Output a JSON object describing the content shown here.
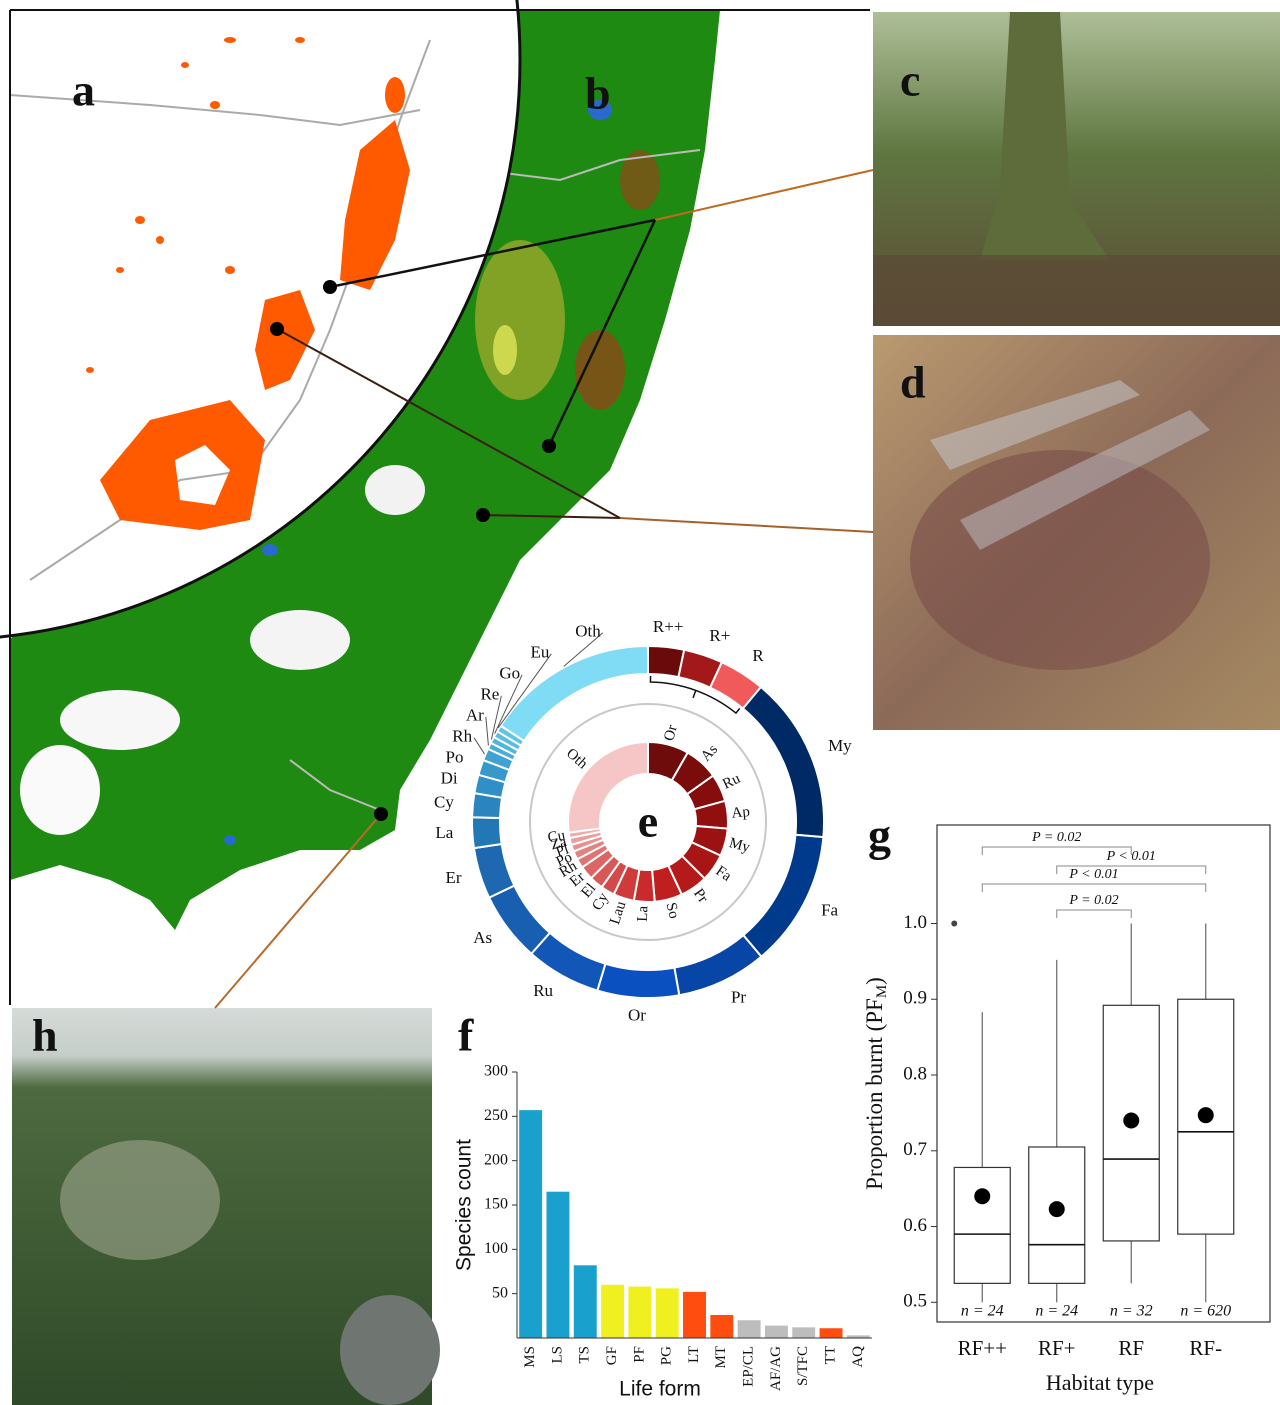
{
  "panel_labels": [
    "a",
    "b",
    "c",
    "d",
    "e",
    "f",
    "g",
    "h"
  ],
  "chart_data": [
    {
      "type": "donut",
      "outer": {
        "categories": [
          "R++",
          "R+",
          "R",
          "My",
          "Fa",
          "Pr",
          "Or",
          "Ru",
          "As",
          "Er",
          "La",
          "Cy",
          "Di",
          "Po",
          "Rh",
          "Ar",
          "Re",
          "Go",
          "Eu",
          "Oth"
        ],
        "values": [
          3.3,
          3.6,
          4.2,
          15.3,
          12.5,
          8.3,
          7.5,
          6.9,
          6.4,
          4.7,
          2.8,
          2.2,
          1.7,
          1.4,
          1.1,
          0.6,
          0.6,
          0.6,
          0.6,
          15.8
        ],
        "colors": [
          "#6b0a0a",
          "#a31818",
          "#f05a5a",
          "#002a66",
          "#003a8c",
          "#0745a6",
          "#0a50c0",
          "#1257b8",
          "#185fb2",
          "#1e68b2",
          "#2277b5",
          "#2a84bf",
          "#308fc7",
          "#3898cc",
          "#40a2d2",
          "#48acd8",
          "#50b5dc",
          "#58bde0",
          "#60c5e5",
          "#80dcf5"
        ]
      },
      "inner": {
        "categories": [
          "Or",
          "As",
          "Ru",
          "Ap",
          "My",
          "Fa",
          "Pr",
          "So",
          "La",
          "Lau",
          "Cy",
          "El",
          "Er",
          "Rh",
          "Po",
          "Pl",
          "Za",
          "Cu",
          "Oth"
        ],
        "values": [
          8.3,
          6.9,
          5.6,
          5.6,
          5.6,
          5.6,
          5.6,
          5.6,
          4.2,
          4.2,
          2.8,
          2.8,
          2.8,
          1.9,
          1.7,
          1.4,
          1.4,
          1.1,
          27.2
        ],
        "colors": [
          "#6e0b0b",
          "#7a0c0c",
          "#860d0d",
          "#910f0f",
          "#9c1212",
          "#a81515",
          "#b41a1a",
          "#c01f1f",
          "#c92a2a",
          "#cf3a3a",
          "#d44a4a",
          "#d85858",
          "#dc6666",
          "#e07474",
          "#e48282",
          "#e89090",
          "#eb9e9e",
          "#efacac",
          "#f6c6c6"
        ]
      }
    },
    {
      "type": "bar",
      "categories": [
        "MS",
        "LS",
        "TS",
        "GF",
        "PF",
        "PG",
        "LT",
        "MT",
        "EP/CL",
        "AF/AG",
        "S/TFC",
        "TT",
        "AQ"
      ],
      "values": [
        257,
        165,
        82,
        60,
        58,
        56,
        52,
        26,
        20,
        14,
        12,
        11,
        3
      ],
      "colors": [
        "#1aa0cc",
        "#1aa0cc",
        "#1aa0cc",
        "#f0f020",
        "#f0f020",
        "#f0f020",
        "#ff4d10",
        "#ff4d10",
        "#bdbdbd",
        "#bdbdbd",
        "#bdbdbd",
        "#ff4d10",
        "#bdbdbd"
      ],
      "ylim": [
        0,
        300
      ],
      "yticks": [
        50,
        100,
        150,
        200,
        250,
        300
      ],
      "xlabel": "Life form",
      "ylabel": "Species count"
    },
    {
      "type": "box",
      "categories": [
        "RF++",
        "RF+",
        "RF",
        "RF-"
      ],
      "whisker_low": [
        0.5,
        0.5,
        0.525,
        0.5
      ],
      "q1": [
        0.525,
        0.525,
        0.581,
        0.59
      ],
      "median": [
        0.59,
        0.576,
        0.689,
        0.725
      ],
      "q3": [
        0.678,
        0.705,
        0.892,
        0.9
      ],
      "whisker_high": [
        0.883,
        0.952,
        1,
        1
      ],
      "mean": [
        0.64,
        0.623,
        0.74,
        0.747
      ],
      "outliers": [
        [
          1
        ],
        [],
        [],
        []
      ],
      "n_labels": [
        "n = 24",
        "n = 24",
        "n = 32",
        "n = 620"
      ],
      "comparisons": [
        {
          "groups": [
            "RF++",
            "RF"
          ],
          "label": "P = 0.02"
        },
        {
          "groups": [
            "RF+",
            "RF-"
          ],
          "label": "P < 0.01"
        },
        {
          "groups": [
            "RF++",
            "RF-"
          ],
          "label": "P < 0.01"
        },
        {
          "groups": [
            "RF+",
            "RF"
          ],
          "label": "P = 0.02"
        }
      ],
      "ylim": [
        0.474,
        1.13
      ],
      "yticks": [
        0.5,
        0.6,
        0.7,
        0.8,
        0.9,
        {
          "value": 1,
          "label": "1.0"
        }
      ],
      "xlabel": "Habitat type",
      "ylabel": {
        "text": "Proportion burnt (PF",
        "subscript": "M",
        "suffix": ")"
      }
    }
  ]
}
